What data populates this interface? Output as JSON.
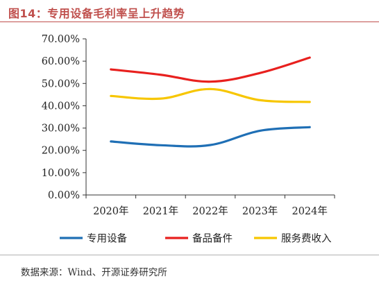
{
  "header": {
    "figure_title": "图14：专用设备毛利率呈上升趋势"
  },
  "footer": {
    "source": "数据来源：Wind、开源证券研究所"
  },
  "chart_data": {
    "type": "line",
    "title": "",
    "xlabel": "",
    "ylabel": "",
    "categories": [
      "2020年",
      "2021年",
      "2022年",
      "2023年",
      "2024年"
    ],
    "ylim": [
      0,
      70
    ],
    "yticks": [
      0,
      10,
      20,
      30,
      40,
      50,
      60,
      70
    ],
    "ytick_labels": [
      "0.00%",
      "10.00%",
      "20.00%",
      "30.00%",
      "40.00%",
      "50.00%",
      "60.00%",
      "70.00%"
    ],
    "grid": false,
    "legend_position": "bottom",
    "series": [
      {
        "name": "专用设备",
        "color": "#1f6fb5",
        "values": [
          24.0,
          22.3,
          22.4,
          28.8,
          30.4
        ]
      },
      {
        "name": "备品备件",
        "color": "#e8201e",
        "values": [
          56.3,
          53.9,
          50.8,
          54.7,
          61.6
        ]
      },
      {
        "name": "服务费收入",
        "color": "#f7c600",
        "values": [
          44.4,
          43.2,
          47.5,
          42.5,
          41.7
        ]
      }
    ]
  }
}
